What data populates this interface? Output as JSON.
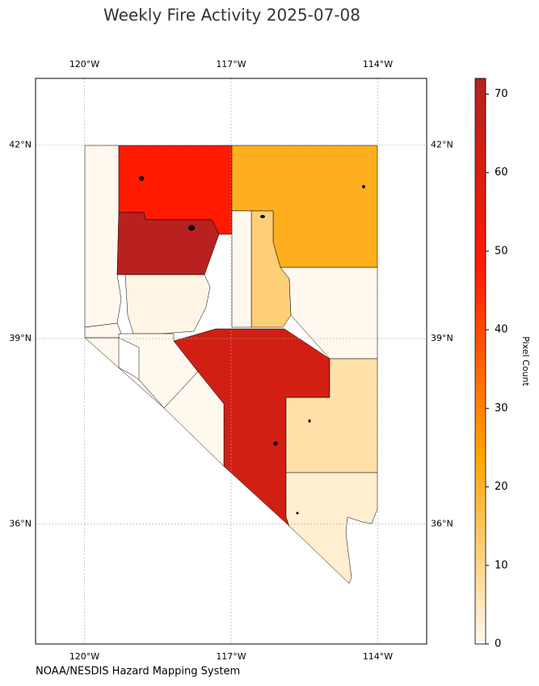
{
  "chart_data": {
    "type": "choropleth",
    "title": "Weekly Fire Activity 2025-07-08",
    "source": "NOAA/NESDIS Hazard Mapping System",
    "colorbar_label": "Pixel Count",
    "xlim": [
      -121,
      -113
    ],
    "ylim": [
      34,
      43
    ],
    "xticks": [
      {
        "value": -120,
        "label": "120°W"
      },
      {
        "value": -117,
        "label": "117°W"
      },
      {
        "value": -114,
        "label": "114°W"
      }
    ],
    "yticks": [
      {
        "value": 42,
        "label": "42°N"
      },
      {
        "value": 39,
        "label": "39°N"
      },
      {
        "value": 36,
        "label": "36°N"
      }
    ],
    "grid": true,
    "clim": [
      0,
      72
    ],
    "cticks": [
      0,
      10,
      20,
      30,
      40,
      50,
      60,
      70
    ],
    "colormap": [
      "#fff8ee",
      "#ffa500",
      "#ff1a00",
      "#b22222"
    ],
    "region_values": [
      0,
      48,
      21,
      70,
      12,
      0,
      0,
      1,
      0,
      0,
      0,
      62,
      0,
      7,
      3
    ]
  }
}
